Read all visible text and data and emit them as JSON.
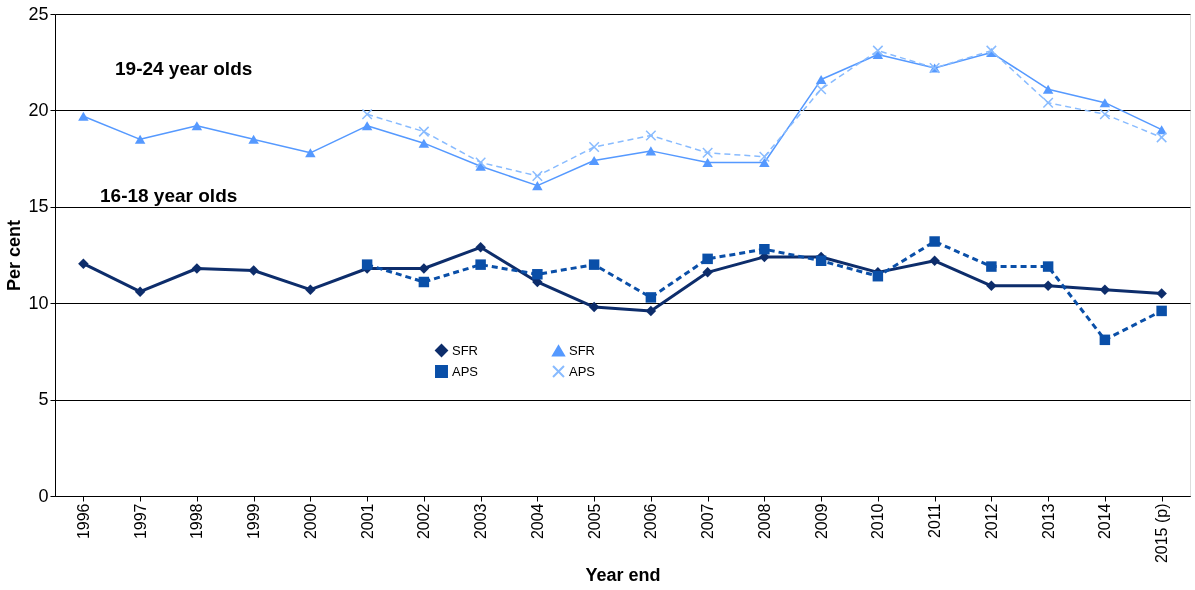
{
  "chart_data": {
    "type": "line",
    "xlabel": "Year end",
    "ylabel": "Per cent",
    "categories": [
      "1996",
      "1997",
      "1998",
      "1999",
      "2000",
      "2001",
      "2002",
      "2003",
      "2004",
      "2005",
      "2006",
      "2007",
      "2008",
      "2009",
      "2010",
      "2011",
      "2012",
      "2013",
      "2014",
      "2015 (p)"
    ],
    "series": [
      {
        "name": "SFR",
        "color": "#0d2d6b",
        "marker": "diamond",
        "line_style": "solid",
        "values": [
          12.05,
          10.6,
          11.8,
          11.7,
          10.7,
          11.8,
          11.8,
          12.9,
          11.1,
          9.8,
          9.6,
          11.6,
          12.4,
          12.4,
          11.6,
          12.2,
          10.9,
          10.9,
          10.7,
          10.5
        ]
      },
      {
        "name": "APS",
        "color": "#0a4fa8",
        "marker": "square",
        "line_style": "dashed",
        "values": [
          null,
          null,
          null,
          null,
          null,
          12.0,
          11.1,
          12.0,
          11.5,
          12.0,
          10.3,
          12.3,
          12.8,
          12.2,
          11.4,
          13.2,
          11.9,
          11.9,
          8.1,
          9.6
        ]
      },
      {
        "name": "SFR",
        "color": "#5599ff",
        "marker": "triangle",
        "line_style": "solid",
        "values": [
          19.7,
          18.5,
          19.2,
          18.5,
          17.8,
          19.2,
          18.3,
          17.1,
          16.1,
          17.4,
          17.9,
          17.3,
          17.3,
          21.6,
          22.9,
          22.2,
          23.0,
          21.1,
          20.4,
          19.0
        ]
      },
      {
        "name": "APS",
        "color": "#88bbff",
        "marker": "cross",
        "line_style": "dashed",
        "values": [
          null,
          null,
          null,
          null,
          null,
          19.8,
          18.9,
          17.3,
          16.6,
          18.1,
          18.7,
          17.8,
          17.6,
          21.1,
          23.1,
          22.2,
          23.1,
          20.4,
          19.8,
          18.6
        ]
      }
    ],
    "ylim": [
      0,
      25
    ],
    "yticks": [
      0,
      5,
      10,
      15,
      20,
      25
    ],
    "grid": "y",
    "legend": "bottom",
    "annotations": [
      "19-24 year olds",
      "16-18 year olds"
    ]
  }
}
